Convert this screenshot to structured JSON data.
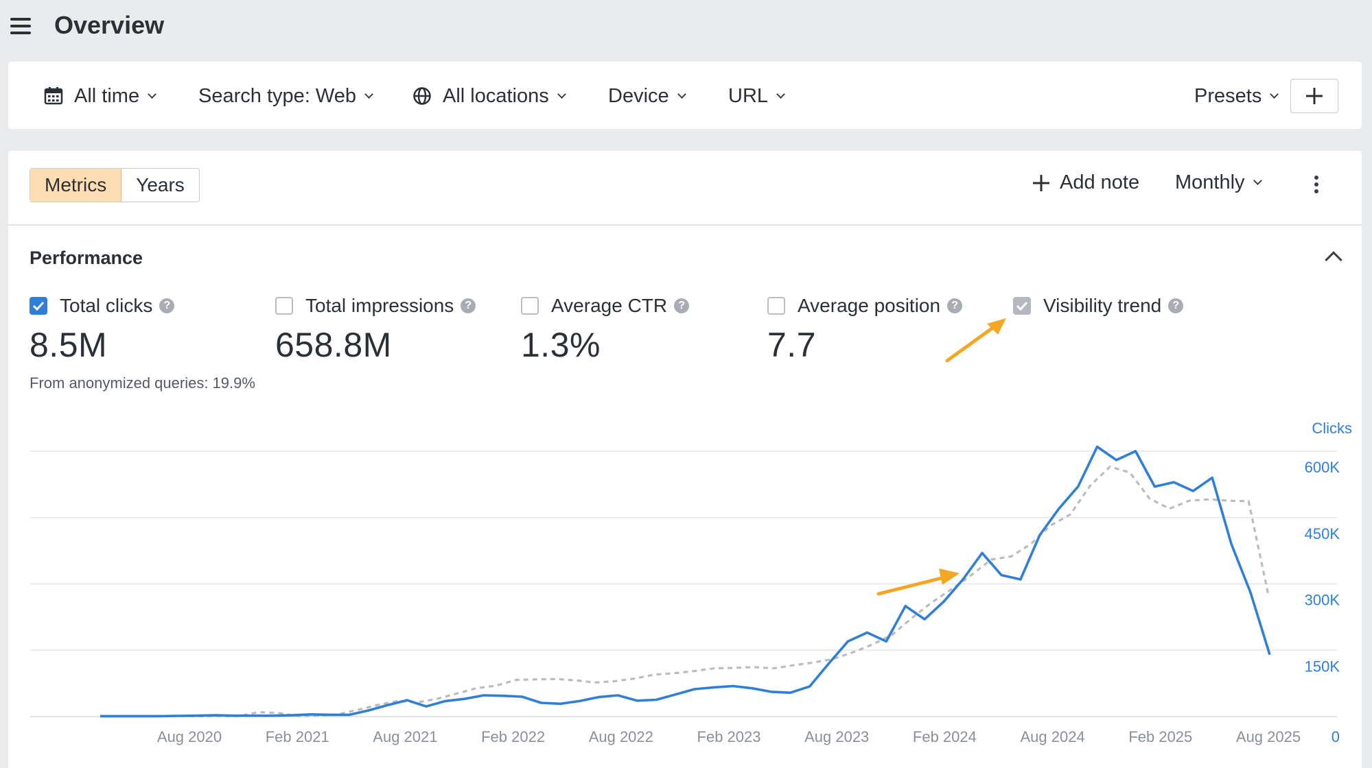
{
  "header": {
    "title": "Overview",
    "menu_icon": "hamburger-menu-icon"
  },
  "filters": {
    "date": "All time",
    "search_type": "Search type: Web",
    "locations": "All locations",
    "device": "Device",
    "url": "URL",
    "presets": "Presets"
  },
  "toolbar": {
    "tabs": [
      "Metrics",
      "Years"
    ],
    "active_tab": "Metrics",
    "add_note": "Add note",
    "interval": "Monthly"
  },
  "performance": {
    "title": "Performance",
    "metrics": [
      {
        "label": "Total clicks",
        "value": "8.5M",
        "checked": true
      },
      {
        "label": "Total impressions",
        "value": "658.8M",
        "checked": false
      },
      {
        "label": "Average CTR",
        "value": "1.3%",
        "checked": false
      },
      {
        "label": "Average position",
        "value": "7.7",
        "checked": false
      },
      {
        "label": "Visibility trend",
        "value": "",
        "checked": true
      }
    ],
    "anon_note": "From anonymized queries: 19.9%"
  },
  "colors": {
    "clicks": "#2f7fd8",
    "visibility": "#b9bcc2",
    "annotation_arrow": "#f5a623",
    "active_tab": "#ffddb3"
  },
  "chart_data": {
    "type": "line",
    "y_axis_title": "Clicks",
    "yticks": [
      "600K",
      "450K",
      "300K",
      "150K",
      "0"
    ],
    "ytick_values": [
      600000,
      450000,
      300000,
      150000,
      0
    ],
    "ylim": [
      0,
      600000
    ],
    "x_tick_labels": [
      "Aug 2020",
      "Feb 2021",
      "Aug 2021",
      "Feb 2022",
      "Aug 2022",
      "Feb 2023",
      "Aug 2023",
      "Feb 2024",
      "Aug 2024",
      "Feb 2025",
      "Aug 2025"
    ],
    "grid": true,
    "series": [
      {
        "values": [
          1000,
          1000,
          1000,
          1000,
          1500,
          2000,
          3000,
          2000,
          2000,
          2000,
          3000,
          5000,
          4000,
          4000,
          14000,
          26000,
          37000,
          23000,
          35000,
          40000,
          48000,
          47000,
          45000,
          31000,
          29000,
          35000,
          44000,
          48000,
          36000,
          38000,
          50000,
          62000,
          66000,
          69000,
          64000,
          56000,
          54000,
          68000,
          120000,
          170000,
          190000,
          170000,
          250000,
          220000,
          260000,
          310000,
          370000,
          320000,
          310000,
          410000,
          470000,
          520000,
          610000,
          580000,
          600000,
          520000,
          530000,
          510000,
          540000,
          390000,
          280000,
          140000
        ]
      },
      {
        "values": [
          1000,
          1000,
          1000,
          1000,
          1000,
          1000,
          1000,
          1000,
          10000,
          8000,
          1000,
          2000,
          5000,
          15000,
          26000,
          35000,
          32000,
          40000,
          52000,
          64000,
          70000,
          83000,
          84000,
          85000,
          82000,
          77000,
          80000,
          86000,
          95000,
          98000,
          103000,
          109000,
          110000,
          112000,
          109000,
          116000,
          122000,
          130000,
          145000,
          163000,
          185000,
          223000,
          258000,
          288000,
          320000,
          355000,
          362000,
          390000,
          432000,
          457000,
          522000,
          565000,
          552000,
          493000,
          470000,
          488000,
          491000,
          488000,
          487000,
          275000
        ]
      }
    ]
  }
}
